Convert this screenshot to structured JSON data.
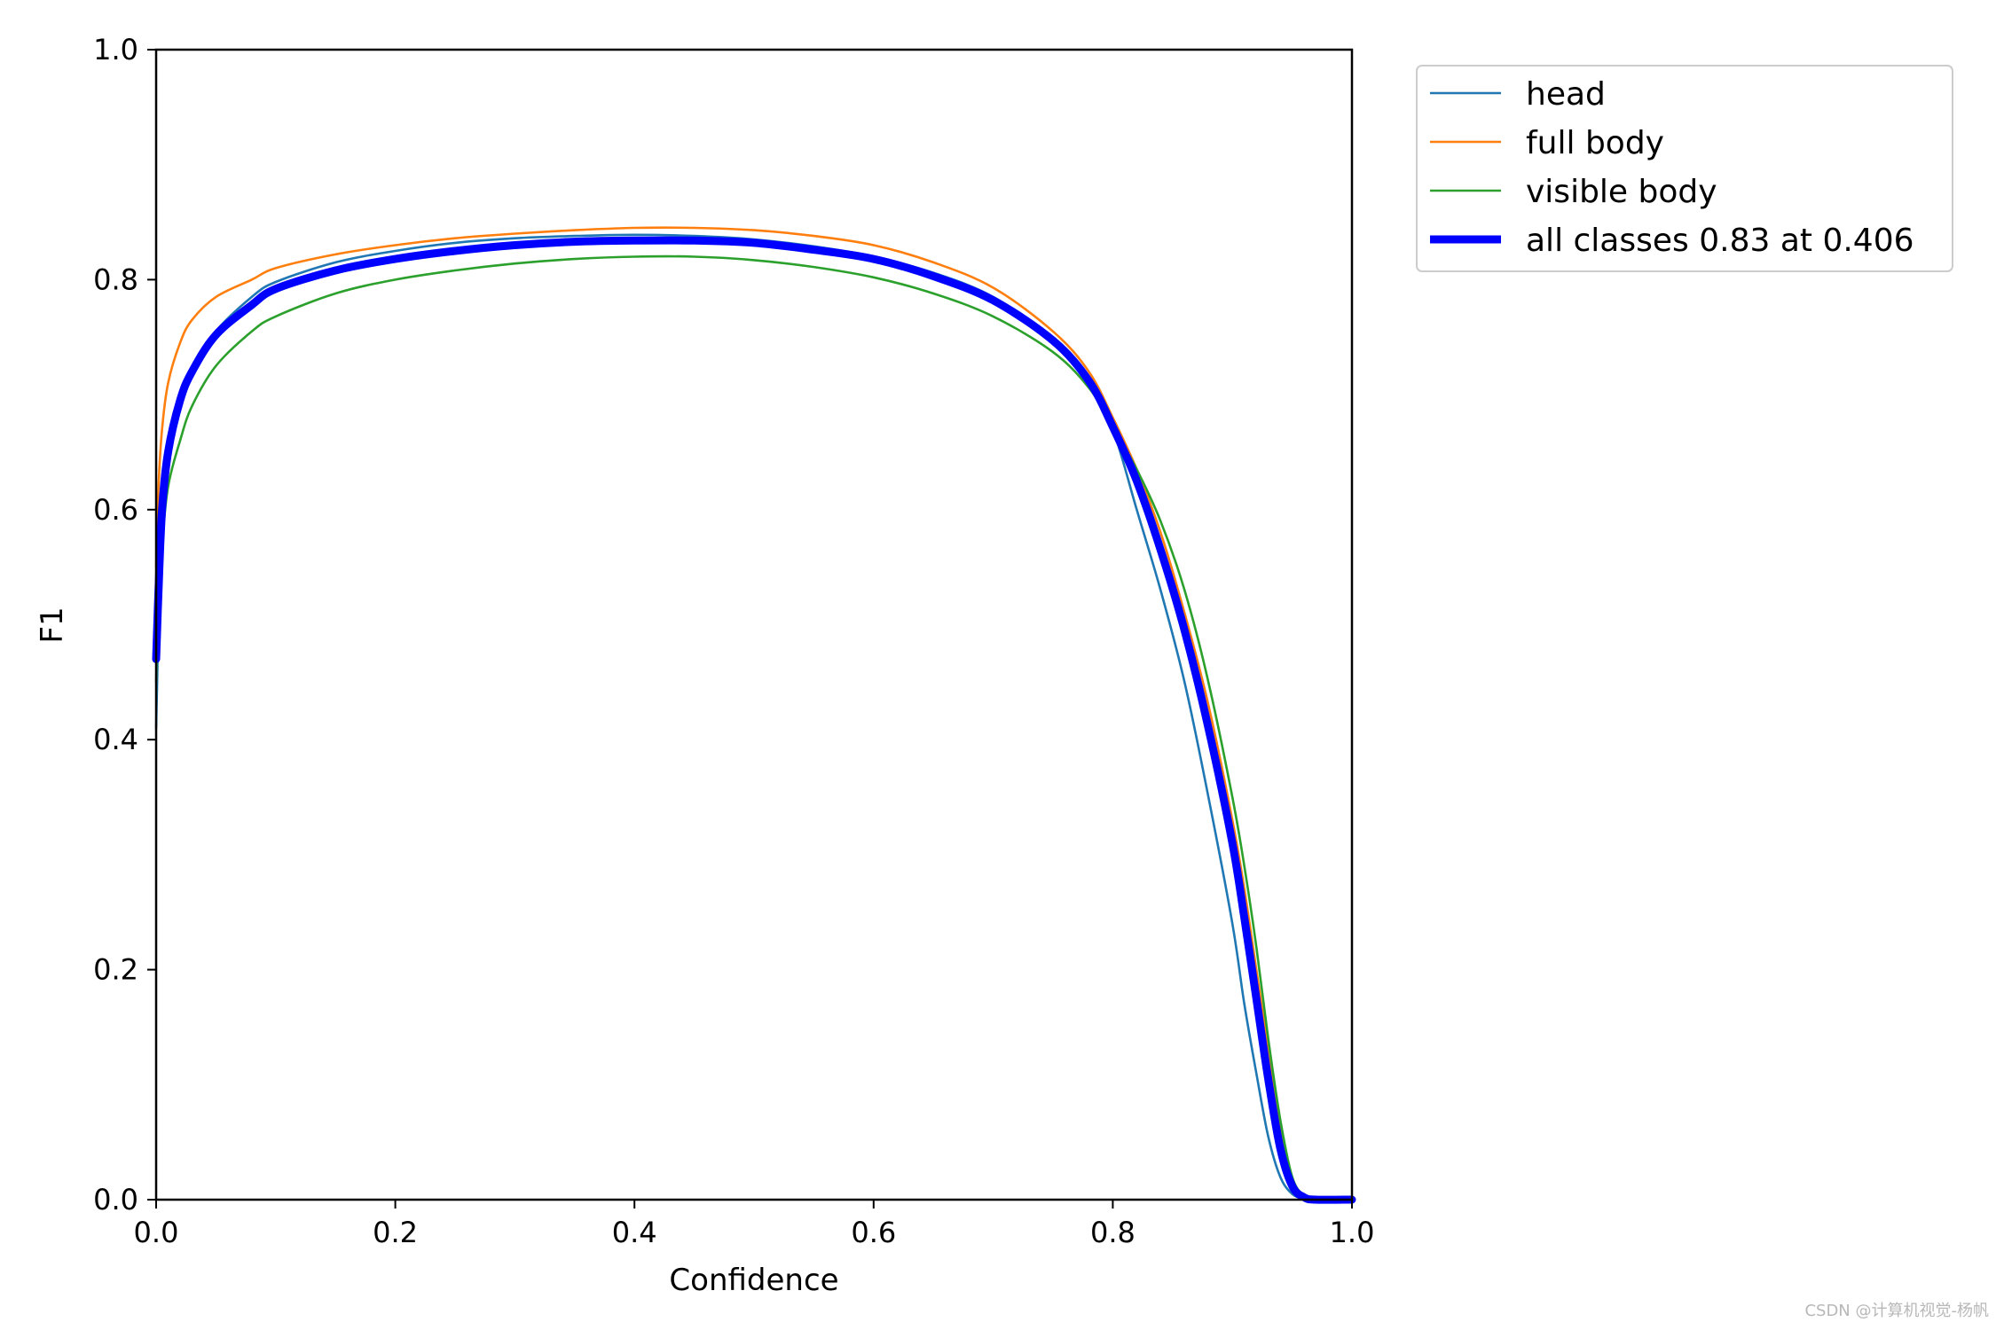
{
  "chart_data": {
    "type": "line",
    "xlabel": "Confidence",
    "ylabel": "F1",
    "xlim": [
      0,
      1
    ],
    "ylim": [
      0,
      1
    ],
    "xticks": [
      "0.0",
      "0.2",
      "0.4",
      "0.6",
      "0.8",
      "1.0"
    ],
    "yticks": [
      "0.0",
      "0.2",
      "0.4",
      "0.6",
      "0.8",
      "1.0"
    ],
    "grid": false,
    "legend_position": "outside-right-top",
    "series": [
      {
        "name": "head",
        "color": "#1f77b4",
        "x": [
          0.0,
          0.002,
          0.005,
          0.01,
          0.02,
          0.03,
          0.05,
          0.08,
          0.1,
          0.15,
          0.2,
          0.25,
          0.3,
          0.35,
          0.4,
          0.45,
          0.5,
          0.55,
          0.6,
          0.65,
          0.7,
          0.75,
          0.78,
          0.8,
          0.82,
          0.84,
          0.86,
          0.88,
          0.9,
          0.91,
          0.92,
          0.93,
          0.94,
          0.95,
          0.96,
          0.97,
          1.0
        ],
        "y": [
          0.41,
          0.5,
          0.58,
          0.64,
          0.69,
          0.72,
          0.755,
          0.785,
          0.798,
          0.815,
          0.825,
          0.832,
          0.836,
          0.838,
          0.839,
          0.838,
          0.835,
          0.829,
          0.82,
          0.806,
          0.785,
          0.748,
          0.71,
          0.67,
          0.6,
          0.53,
          0.45,
          0.35,
          0.24,
          0.17,
          0.11,
          0.055,
          0.02,
          0.005,
          0.001,
          0.0,
          0.0
        ]
      },
      {
        "name": "full body",
        "color": "#ff7f0e",
        "x": [
          0.0,
          0.002,
          0.005,
          0.01,
          0.02,
          0.03,
          0.05,
          0.08,
          0.1,
          0.15,
          0.2,
          0.25,
          0.3,
          0.35,
          0.4,
          0.45,
          0.5,
          0.55,
          0.6,
          0.65,
          0.7,
          0.75,
          0.78,
          0.8,
          0.82,
          0.84,
          0.86,
          0.88,
          0.9,
          0.91,
          0.92,
          0.93,
          0.94,
          0.95,
          0.96,
          0.97,
          1.0
        ],
        "y": [
          0.55,
          0.62,
          0.67,
          0.71,
          0.745,
          0.765,
          0.785,
          0.8,
          0.81,
          0.822,
          0.83,
          0.836,
          0.84,
          0.843,
          0.845,
          0.845,
          0.843,
          0.838,
          0.83,
          0.815,
          0.793,
          0.755,
          0.72,
          0.68,
          0.635,
          0.58,
          0.51,
          0.43,
          0.33,
          0.27,
          0.2,
          0.13,
          0.06,
          0.015,
          0.002,
          0.0,
          0.0
        ]
      },
      {
        "name": "visible body",
        "color": "#2ca02c",
        "x": [
          0.0,
          0.002,
          0.005,
          0.01,
          0.02,
          0.03,
          0.05,
          0.08,
          0.1,
          0.15,
          0.2,
          0.25,
          0.3,
          0.35,
          0.4,
          0.45,
          0.5,
          0.55,
          0.6,
          0.65,
          0.7,
          0.75,
          0.78,
          0.8,
          0.82,
          0.84,
          0.86,
          0.88,
          0.9,
          0.91,
          0.92,
          0.93,
          0.94,
          0.95,
          0.96,
          0.97,
          1.0
        ],
        "y": [
          0.45,
          0.52,
          0.57,
          0.62,
          0.66,
          0.69,
          0.725,
          0.755,
          0.768,
          0.788,
          0.8,
          0.808,
          0.814,
          0.818,
          0.82,
          0.82,
          0.817,
          0.811,
          0.802,
          0.788,
          0.768,
          0.737,
          0.706,
          0.672,
          0.635,
          0.59,
          0.53,
          0.45,
          0.35,
          0.29,
          0.22,
          0.14,
          0.07,
          0.02,
          0.003,
          0.0,
          0.0
        ]
      },
      {
        "name": "all classes 0.83 at 0.406",
        "color": "#0000ff",
        "bold": true,
        "x": [
          0.0,
          0.002,
          0.005,
          0.01,
          0.02,
          0.03,
          0.05,
          0.08,
          0.1,
          0.15,
          0.2,
          0.25,
          0.3,
          0.35,
          0.4,
          0.45,
          0.5,
          0.55,
          0.6,
          0.65,
          0.7,
          0.75,
          0.78,
          0.8,
          0.82,
          0.84,
          0.86,
          0.88,
          0.9,
          0.91,
          0.92,
          0.93,
          0.94,
          0.95,
          0.96,
          0.97,
          1.0
        ],
        "y": [
          0.47,
          0.53,
          0.6,
          0.65,
          0.695,
          0.72,
          0.752,
          0.778,
          0.792,
          0.808,
          0.818,
          0.825,
          0.83,
          0.833,
          0.834,
          0.834,
          0.832,
          0.826,
          0.818,
          0.803,
          0.782,
          0.747,
          0.712,
          0.672,
          0.625,
          0.565,
          0.495,
          0.41,
          0.31,
          0.245,
          0.175,
          0.105,
          0.045,
          0.012,
          0.002,
          0.0,
          0.0
        ]
      }
    ]
  },
  "watermark": "CSDN @计算机视觉-杨帆"
}
